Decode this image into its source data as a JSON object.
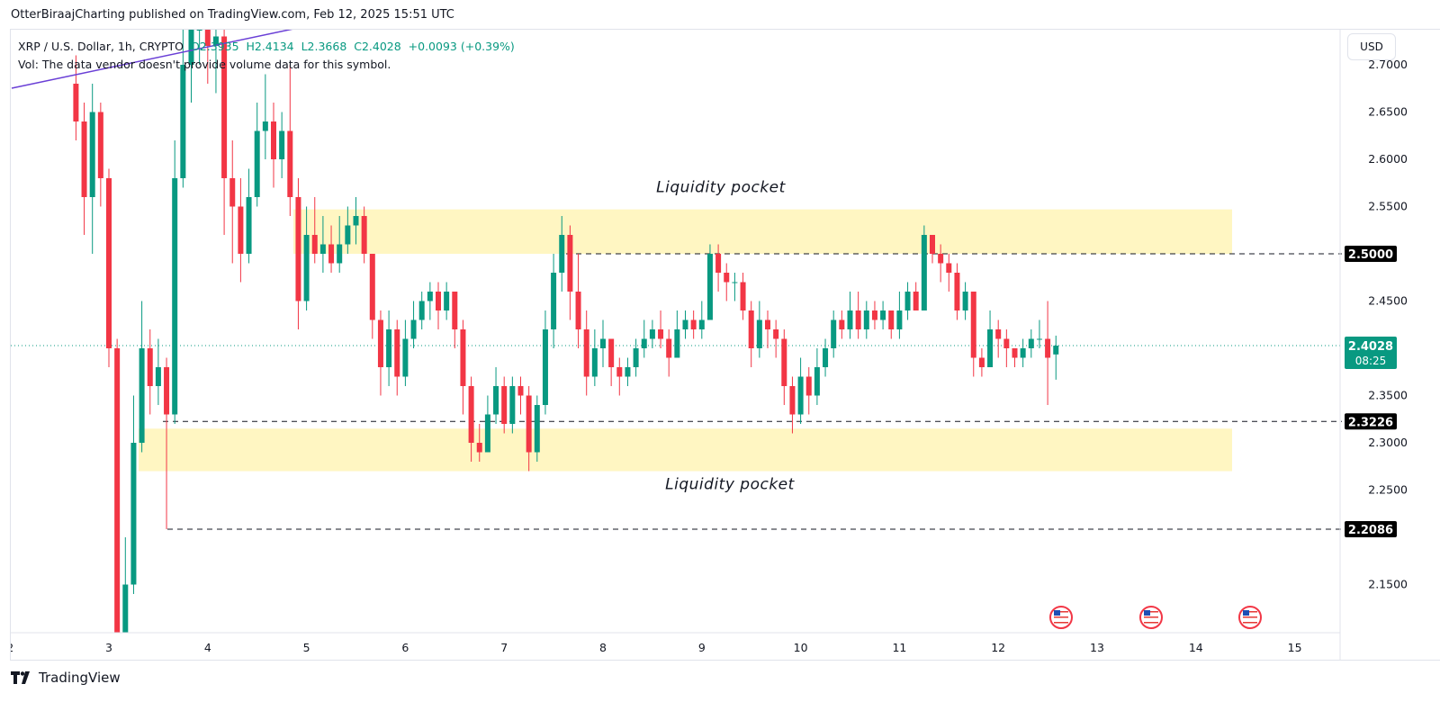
{
  "publish_line": "OtterBiraajCharting published on TradingView.com, Feb 12, 2025 15:51 UTC",
  "legend": {
    "symbol": "XRP / U.S. Dollar, 1h, CRYPTO",
    "open": "O2.3935",
    "high": "H2.4134",
    "low": "L2.3668",
    "close": "C2.4028",
    "change": "+0.0093 (+0.39%)",
    "vol": "Vol: The data vendor doesn't provide volume data for this symbol."
  },
  "currency_button": "USD",
  "brand": "TradingView",
  "colors": {
    "up": "#089981",
    "down": "#f23645",
    "zone": "#fff6c2",
    "trendline": "#6a3fd6",
    "label_bg": "#000000",
    "price_bg": "#089981"
  },
  "chart_data": {
    "type": "candlestick",
    "interval": "1h",
    "x_tick_labels": [
      "2",
      "3",
      "4",
      "5",
      "6",
      "7",
      "8",
      "9",
      "10",
      "11",
      "12",
      "13",
      "14",
      "15"
    ],
    "y_tick_labels": [
      "2.7000",
      "2.6500",
      "2.6000",
      "2.5500",
      "2.4500",
      "2.3500",
      "2.3000",
      "2.2500",
      "2.1500"
    ],
    "ylim": [
      2.1,
      2.72
    ],
    "current_price": {
      "value": "2.4028",
      "countdown": "08:25"
    },
    "levels": [
      {
        "value": 2.5,
        "label": "2.5000"
      },
      {
        "value": 2.3226,
        "label": "2.3226"
      },
      {
        "value": 2.2086,
        "label": "2.2086"
      }
    ],
    "zones": [
      {
        "label": "Liquidity pocket",
        "from": 2.5,
        "to": 2.547
      },
      {
        "label": "Liquidity pocket",
        "from": 2.27,
        "to": 2.315
      }
    ],
    "candles_ohlc": [
      [
        2.68,
        2.71,
        2.62,
        2.64
      ],
      [
        2.64,
        2.66,
        2.52,
        2.56
      ],
      [
        2.56,
        2.68,
        2.5,
        2.65
      ],
      [
        2.65,
        2.66,
        2.55,
        2.58
      ],
      [
        2.58,
        2.59,
        2.38,
        2.4
      ],
      [
        2.4,
        2.41,
        1.95,
        2.05
      ],
      [
        2.05,
        2.2,
        2.02,
        2.15
      ],
      [
        2.15,
        2.35,
        2.14,
        2.3
      ],
      [
        2.3,
        2.45,
        2.29,
        2.4
      ],
      [
        2.4,
        2.42,
        2.33,
        2.36
      ],
      [
        2.36,
        2.41,
        2.34,
        2.38
      ],
      [
        2.38,
        2.39,
        2.2086,
        2.33
      ],
      [
        2.33,
        2.62,
        2.32,
        2.58
      ],
      [
        2.58,
        2.74,
        2.57,
        2.7
      ],
      [
        2.7,
        2.78,
        2.66,
        2.74
      ],
      [
        2.74,
        2.82,
        2.7,
        2.78
      ],
      [
        2.78,
        2.8,
        2.68,
        2.72
      ],
      [
        2.72,
        2.78,
        2.67,
        2.73
      ],
      [
        2.73,
        2.75,
        2.52,
        2.58
      ],
      [
        2.58,
        2.62,
        2.49,
        2.55
      ],
      [
        2.55,
        2.58,
        2.47,
        2.5
      ],
      [
        2.5,
        2.59,
        2.49,
        2.56
      ],
      [
        2.56,
        2.66,
        2.55,
        2.63
      ],
      [
        2.63,
        2.69,
        2.6,
        2.64
      ],
      [
        2.64,
        2.66,
        2.57,
        2.6
      ],
      [
        2.6,
        2.65,
        2.58,
        2.63
      ],
      [
        2.63,
        2.7,
        2.54,
        2.56
      ],
      [
        2.56,
        2.58,
        2.42,
        2.45
      ],
      [
        2.45,
        2.55,
        2.44,
        2.52
      ],
      [
        2.52,
        2.56,
        2.49,
        2.5
      ],
      [
        2.5,
        2.54,
        2.48,
        2.51
      ],
      [
        2.51,
        2.53,
        2.48,
        2.49
      ],
      [
        2.49,
        2.54,
        2.48,
        2.51
      ],
      [
        2.51,
        2.55,
        2.5,
        2.53
      ],
      [
        2.53,
        2.56,
        2.51,
        2.54
      ],
      [
        2.54,
        2.55,
        2.49,
        2.5
      ],
      [
        2.5,
        2.5,
        2.41,
        2.43
      ],
      [
        2.43,
        2.44,
        2.35,
        2.38
      ],
      [
        2.38,
        2.44,
        2.36,
        2.42
      ],
      [
        2.42,
        2.43,
        2.35,
        2.37
      ],
      [
        2.37,
        2.43,
        2.36,
        2.41
      ],
      [
        2.41,
        2.45,
        2.4,
        2.43
      ],
      [
        2.43,
        2.46,
        2.42,
        2.45
      ],
      [
        2.45,
        2.47,
        2.43,
        2.46
      ],
      [
        2.46,
        2.47,
        2.42,
        2.44
      ],
      [
        2.44,
        2.47,
        2.43,
        2.46
      ],
      [
        2.46,
        2.46,
        2.4,
        2.42
      ],
      [
        2.42,
        2.43,
        2.33,
        2.36
      ],
      [
        2.36,
        2.37,
        2.28,
        2.3
      ],
      [
        2.3,
        2.32,
        2.28,
        2.29
      ],
      [
        2.29,
        2.35,
        2.29,
        2.33
      ],
      [
        2.33,
        2.38,
        2.32,
        2.36
      ],
      [
        2.36,
        2.37,
        2.31,
        2.32
      ],
      [
        2.32,
        2.37,
        2.31,
        2.36
      ],
      [
        2.36,
        2.37,
        2.33,
        2.35
      ],
      [
        2.35,
        2.36,
        2.27,
        2.29
      ],
      [
        2.29,
        2.35,
        2.28,
        2.34
      ],
      [
        2.34,
        2.44,
        2.33,
        2.42
      ],
      [
        2.42,
        2.5,
        2.4,
        2.48
      ],
      [
        2.48,
        2.54,
        2.46,
        2.52
      ],
      [
        2.52,
        2.53,
        2.43,
        2.46
      ],
      [
        2.46,
        2.5,
        2.4,
        2.42
      ],
      [
        2.42,
        2.44,
        2.35,
        2.37
      ],
      [
        2.37,
        2.42,
        2.36,
        2.4
      ],
      [
        2.4,
        2.43,
        2.38,
        2.41
      ],
      [
        2.41,
        2.41,
        2.36,
        2.38
      ],
      [
        2.38,
        2.39,
        2.35,
        2.37
      ],
      [
        2.37,
        2.39,
        2.36,
        2.38
      ],
      [
        2.38,
        2.41,
        2.37,
        2.4
      ],
      [
        2.4,
        2.43,
        2.39,
        2.41
      ],
      [
        2.41,
        2.43,
        2.4,
        2.42
      ],
      [
        2.42,
        2.44,
        2.4,
        2.41
      ],
      [
        2.41,
        2.42,
        2.37,
        2.39
      ],
      [
        2.39,
        2.44,
        2.39,
        2.42
      ],
      [
        2.42,
        2.44,
        2.41,
        2.43
      ],
      [
        2.43,
        2.44,
        2.41,
        2.42
      ],
      [
        2.42,
        2.45,
        2.41,
        2.43
      ],
      [
        2.43,
        2.51,
        2.43,
        2.5
      ],
      [
        2.5,
        2.51,
        2.46,
        2.48
      ],
      [
        2.48,
        2.49,
        2.45,
        2.47
      ],
      [
        2.47,
        2.48,
        2.45,
        2.47
      ],
      [
        2.47,
        2.48,
        2.43,
        2.44
      ],
      [
        2.44,
        2.45,
        2.38,
        2.4
      ],
      [
        2.4,
        2.45,
        2.39,
        2.43
      ],
      [
        2.43,
        2.44,
        2.4,
        2.42
      ],
      [
        2.42,
        2.43,
        2.39,
        2.41
      ],
      [
        2.41,
        2.42,
        2.34,
        2.36
      ],
      [
        2.36,
        2.37,
        2.31,
        2.33
      ],
      [
        2.33,
        2.39,
        2.32,
        2.37
      ],
      [
        2.37,
        2.38,
        2.33,
        2.35
      ],
      [
        2.35,
        2.4,
        2.34,
        2.38
      ],
      [
        2.38,
        2.41,
        2.37,
        2.4
      ],
      [
        2.4,
        2.44,
        2.39,
        2.43
      ],
      [
        2.43,
        2.44,
        2.41,
        2.42
      ],
      [
        2.42,
        2.46,
        2.41,
        2.44
      ],
      [
        2.44,
        2.46,
        2.41,
        2.42
      ],
      [
        2.42,
        2.45,
        2.41,
        2.44
      ],
      [
        2.44,
        2.45,
        2.42,
        2.43
      ],
      [
        2.43,
        2.45,
        2.42,
        2.44
      ],
      [
        2.44,
        2.44,
        2.41,
        2.42
      ],
      [
        2.42,
        2.46,
        2.41,
        2.44
      ],
      [
        2.44,
        2.47,
        2.43,
        2.46
      ],
      [
        2.46,
        2.47,
        2.44,
        2.44
      ],
      [
        2.44,
        2.53,
        2.44,
        2.52
      ],
      [
        2.52,
        2.52,
        2.49,
        2.5
      ],
      [
        2.5,
        2.51,
        2.47,
        2.49
      ],
      [
        2.49,
        2.5,
        2.46,
        2.48
      ],
      [
        2.48,
        2.49,
        2.43,
        2.44
      ],
      [
        2.44,
        2.47,
        2.43,
        2.46
      ],
      [
        2.46,
        2.46,
        2.37,
        2.39
      ],
      [
        2.39,
        2.4,
        2.37,
        2.38
      ],
      [
        2.38,
        2.44,
        2.38,
        2.42
      ],
      [
        2.42,
        2.43,
        2.39,
        2.41
      ],
      [
        2.41,
        2.42,
        2.38,
        2.4
      ],
      [
        2.4,
        2.4,
        2.38,
        2.39
      ],
      [
        2.39,
        2.41,
        2.38,
        2.4
      ],
      [
        2.4,
        2.42,
        2.39,
        2.41
      ],
      [
        2.41,
        2.43,
        2.4,
        2.41
      ],
      [
        2.41,
        2.45,
        2.34,
        2.39
      ],
      [
        2.3935,
        2.4134,
        2.3668,
        2.4028
      ]
    ],
    "event_icons": [
      "us-flag-icon",
      "us-flag-icon",
      "us-flag-icon"
    ]
  }
}
